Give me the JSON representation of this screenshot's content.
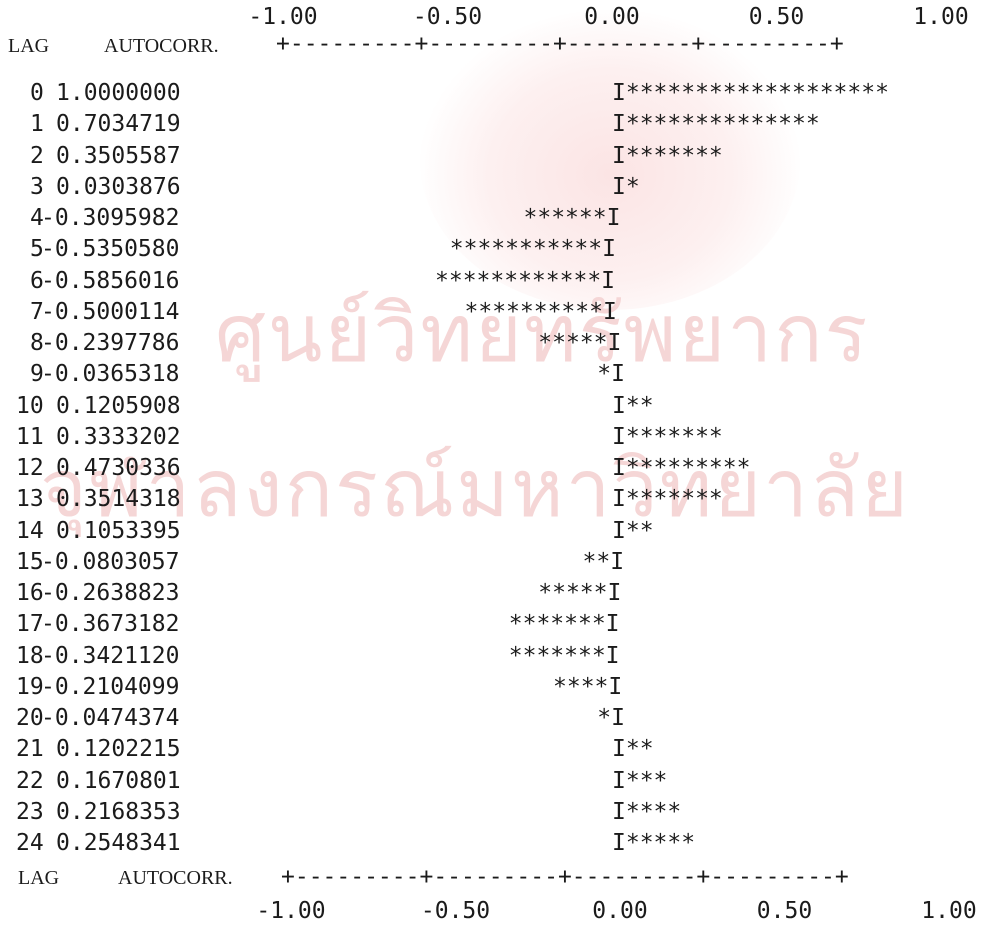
{
  "chart_data": {
    "type": "bar",
    "orientation": "horizontal",
    "header": {
      "lag": "LAG",
      "autocorr": "AUTOCORR."
    },
    "footer": {
      "lag": "LAG",
      "autocorr": "AUTOCORR."
    },
    "xlim": [
      -1.0,
      1.0
    ],
    "top_ticks": [
      "-1.00",
      "-0.50",
      "0.00",
      "0.50",
      "1.00"
    ],
    "bottom_ticks": [
      "-1.00",
      "-0.50",
      "0.00",
      "0.50",
      "1.00"
    ],
    "axis_rule": "+---------+---------+---------+---------+",
    "zero_marker": "I",
    "bar_char": "*",
    "rows": [
      {
        "lag": "0",
        "value_text": "1.0000000",
        "value": 1.0,
        "stars": "*******************"
      },
      {
        "lag": "1",
        "value_text": "0.7034719",
        "value": 0.7034719,
        "stars": "**************"
      },
      {
        "lag": "2",
        "value_text": "0.3505587",
        "value": 0.3505587,
        "stars": "*******"
      },
      {
        "lag": "3",
        "value_text": "0.0303876",
        "value": 0.0303876,
        "stars": "*"
      },
      {
        "lag": "4",
        "value_text": "-0.3095982",
        "value": -0.3095982,
        "stars": "******"
      },
      {
        "lag": "5",
        "value_text": "-0.5350580",
        "value": -0.535058,
        "stars": "***********"
      },
      {
        "lag": "6",
        "value_text": "-0.5856016",
        "value": -0.5856016,
        "stars": "************"
      },
      {
        "lag": "7",
        "value_text": "-0.5000114",
        "value": -0.5000114,
        "stars": "**********"
      },
      {
        "lag": "8",
        "value_text": "-0.2397786",
        "value": -0.2397786,
        "stars": "*****"
      },
      {
        "lag": "9",
        "value_text": "-0.0365318",
        "value": -0.0365318,
        "stars": "*"
      },
      {
        "lag": "10",
        "value_text": "0.1205908",
        "value": 0.1205908,
        "stars": "**"
      },
      {
        "lag": "11",
        "value_text": "0.3333202",
        "value": 0.3333202,
        "stars": "*******"
      },
      {
        "lag": "12",
        "value_text": "0.4730336",
        "value": 0.4730336,
        "stars": "*********"
      },
      {
        "lag": "13",
        "value_text": "0.3514318",
        "value": 0.3514318,
        "stars": "*******"
      },
      {
        "lag": "14",
        "value_text": "0.1053395",
        "value": 0.1053395,
        "stars": "**"
      },
      {
        "lag": "15",
        "value_text": "-0.0803057",
        "value": -0.0803057,
        "stars": "**"
      },
      {
        "lag": "16",
        "value_text": "-0.2638823",
        "value": -0.2638823,
        "stars": "*****"
      },
      {
        "lag": "17",
        "value_text": "-0.3673182",
        "value": -0.3673182,
        "stars": "*******"
      },
      {
        "lag": "18",
        "value_text": "-0.3421120",
        "value": -0.342112,
        "stars": "*******"
      },
      {
        "lag": "19",
        "value_text": "-0.2104099",
        "value": -0.2104099,
        "stars": "****"
      },
      {
        "lag": "20",
        "value_text": "-0.0474374",
        "value": -0.0474374,
        "stars": "*"
      },
      {
        "lag": "21",
        "value_text": "0.1202215",
        "value": 0.1202215,
        "stars": "**"
      },
      {
        "lag": "22",
        "value_text": "0.1670801",
        "value": 0.1670801,
        "stars": "***"
      },
      {
        "lag": "23",
        "value_text": "0.2168353",
        "value": 0.2168353,
        "stars": "****"
      },
      {
        "lag": "24",
        "value_text": "0.2548341",
        "value": 0.2548341,
        "stars": "*****"
      }
    ]
  },
  "watermark": {
    "line1": "ศูนย์วิทยทรัพยากร",
    "line2": "จุฬาลงกรณ์มหาวิทยาลัย"
  }
}
